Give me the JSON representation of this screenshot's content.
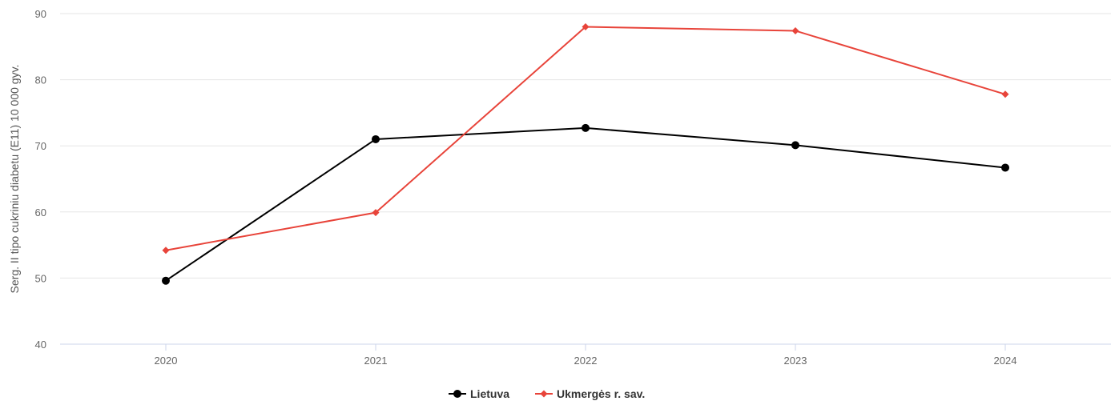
{
  "chart_data": {
    "type": "line",
    "x": [
      "2020",
      "2021",
      "2022",
      "2023",
      "2024"
    ],
    "ylabel": "Serg. II tipo cukriniu diabetu (E11) 10 000 gyv.",
    "ylim": [
      40,
      90
    ],
    "yticks": [
      40,
      50,
      60,
      70,
      80,
      90
    ],
    "grid": true,
    "legend_position": "bottom-center",
    "series": [
      {
        "name": "Lietuva",
        "color": "#000000",
        "marker": "circle",
        "values": [
          49.6,
          71.0,
          72.7,
          70.1,
          66.7
        ]
      },
      {
        "name": "Ukmergės r. sav.",
        "color": "#e8443a",
        "marker": "diamond",
        "values": [
          54.2,
          59.9,
          88.0,
          87.4,
          77.8
        ]
      }
    ]
  }
}
